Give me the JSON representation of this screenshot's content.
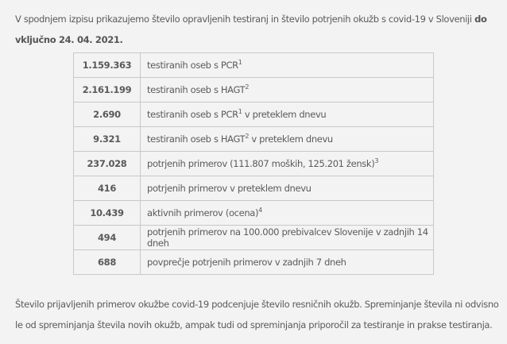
{
  "intro": {
    "text": "V spodnjem izpisu prikazujemo število opravljenih testiranj in število potrjenih okužb s covid-19 v Sloveniji ",
    "bold": "do vključno 24. 04. 2021."
  },
  "rows": [
    {
      "value": "1.159.363",
      "label": "testiranih oseb s PCR",
      "sup": "1",
      "after": ""
    },
    {
      "value": "2.161.199",
      "label": "testiranih oseb s HAGT",
      "sup": "2",
      "after": ""
    },
    {
      "value": "2.690",
      "label": "testiranih oseb s PCR",
      "sup": "1",
      "after": " v preteklem dnevu"
    },
    {
      "value": "9.321",
      "label": "testiranih oseb s HAGT",
      "sup": "2",
      "after": " v preteklem dnevu"
    },
    {
      "value": "237.028",
      "label": "potrjenih primerov  (111.807 moških, 125.201 žensk)",
      "sup": "3",
      "after": ""
    },
    {
      "value": "416",
      "label": "potrjenih primerov v preteklem dnevu",
      "sup": "",
      "after": ""
    },
    {
      "value": "10.439",
      "label": "aktivnih primerov (ocena)",
      "sup": "4",
      "after": ""
    },
    {
      "value": "494",
      "label": "potrjenih primerov na 100.000 prebivalcev Slovenije v zadnjih 14 dneh",
      "sup": "",
      "after": ""
    },
    {
      "value": "688",
      "label": "povprečje potrjenih primerov v zadnjih 7 dneh",
      "sup": "",
      "after": ""
    }
  ],
  "outro": "Število prijavljenih primerov okužbe covid-19 podcenjuje število resničnih okužb. Spreminjanje števila ni odvisno le od spreminjanja števila novih okužb, ampak tudi od spreminjanja priporočil za testiranje in prakse testiranja."
}
